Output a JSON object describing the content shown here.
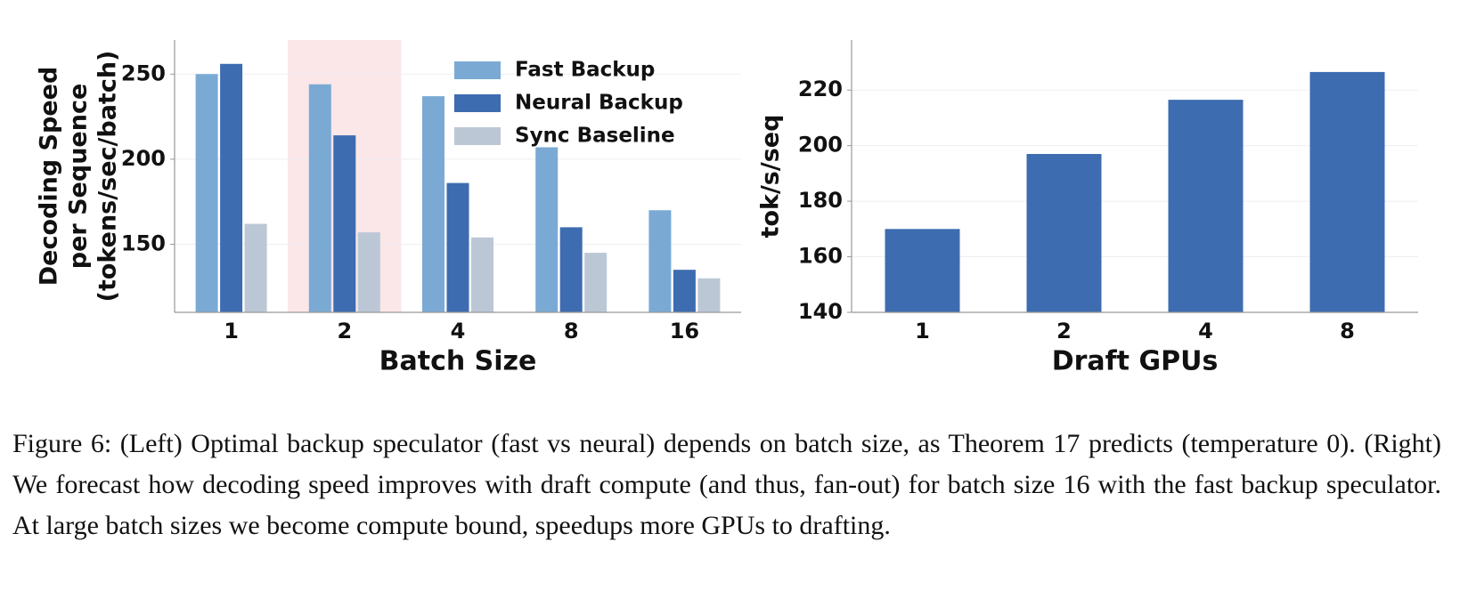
{
  "chart_data": [
    {
      "type": "bar",
      "xlabel": "Batch Size",
      "ylabel": [
        "Decoding Speed",
        "per Sequence",
        "(tokens/sec/batch)"
      ],
      "categories": [
        "1",
        "2",
        "4",
        "8",
        "16"
      ],
      "series": [
        {
          "name": "Fast Backup",
          "color": "#7aaad4",
          "values": [
            250,
            244,
            237,
            207,
            170
          ]
        },
        {
          "name": "Neural Backup",
          "color": "#3d6cb0",
          "values": [
            256,
            214,
            186,
            160,
            135
          ]
        },
        {
          "name": "Sync Baseline",
          "color": "#bcc7d6",
          "values": [
            162,
            157,
            154,
            145,
            130
          ]
        }
      ],
      "ylim": [
        110,
        270
      ],
      "yticks": [
        150,
        200,
        250
      ],
      "grid": true,
      "legend": "upper center",
      "highlight_index": 1,
      "highlight_color": "#fbe6e8"
    },
    {
      "type": "bar",
      "xlabel": "Draft GPUs",
      "ylabel": [
        "tok/s/seq"
      ],
      "categories": [
        "1",
        "2",
        "4",
        "8"
      ],
      "series": [
        {
          "color": "#3d6cb0",
          "values": [
            170,
            197,
            216.5,
            226.5
          ]
        }
      ],
      "ylim": [
        140,
        238
      ],
      "yticks": [
        140,
        160,
        180,
        200,
        220
      ],
      "grid": true
    }
  ],
  "caption": "Figure 6: (Left) Optimal backup speculator (fast vs neural) depends on batch size, as Theorem 17 predicts (temperature 0). (Right) We forecast how decoding speed improves with draft compute (and thus, fan-out) for batch size 16 with the fast backup speculator. At large batch sizes we become compute bound, speedups more GPUs to drafting."
}
